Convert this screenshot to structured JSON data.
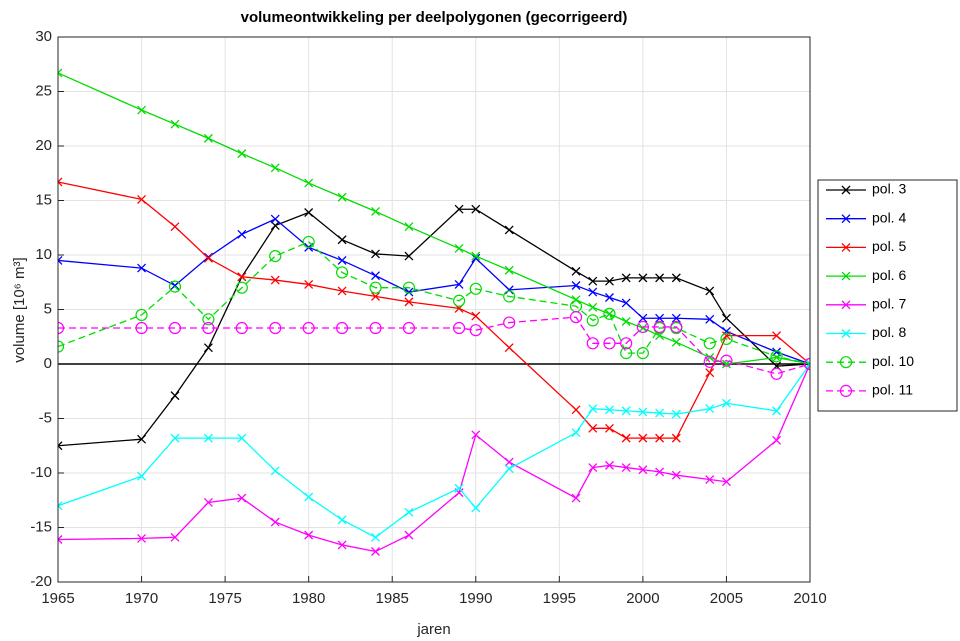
{
  "chart_data": {
    "type": "line",
    "title": "volumeontwikkeling per deelpolygonen (gecorrigeerd)",
    "xlabel": "jaren",
    "ylabel": "volume [10⁶ m³]",
    "x": [
      1965,
      1970,
      1972,
      1974,
      1976,
      1978,
      1980,
      1982,
      1984,
      1986,
      1989,
      1990,
      1992,
      1996,
      1997,
      1998,
      1999,
      2000,
      2001,
      2002,
      2004,
      2005,
      2008,
      2010
    ],
    "series": [
      {
        "name": "pol. 3",
        "color": "#000000",
        "linestyle": "solid",
        "marker": "x",
        "values": [
          -7.5,
          -6.9,
          -2.9,
          1.5,
          8.0,
          12.7,
          13.9,
          11.4,
          10.1,
          9.9,
          14.2,
          14.2,
          12.3,
          8.5,
          7.6,
          7.6,
          7.9,
          7.9,
          7.9,
          7.9,
          6.7,
          4.2,
          -0.2,
          0
        ]
      },
      {
        "name": "pol. 4",
        "color": "#0000ff",
        "linestyle": "solid",
        "marker": "x",
        "values": [
          9.5,
          8.8,
          7.2,
          9.8,
          11.9,
          13.3,
          10.7,
          9.5,
          8.1,
          6.6,
          7.3,
          9.7,
          6.8,
          7.2,
          6.6,
          6.1,
          5.6,
          4.2,
          4.2,
          4.2,
          4.1,
          3.0,
          1.1,
          0
        ]
      },
      {
        "name": "pol. 5",
        "color": "#ff0000",
        "linestyle": "solid",
        "marker": "x",
        "values": [
          16.7,
          15.1,
          12.6,
          9.7,
          8.0,
          7.7,
          7.3,
          6.7,
          6.2,
          5.7,
          5.1,
          4.4,
          1.5,
          -4.2,
          -5.9,
          -5.9,
          -6.8,
          -6.8,
          -6.8,
          -6.8,
          -0.8,
          2.6,
          2.6,
          0
        ]
      },
      {
        "name": "pol. 6",
        "color": "#00dd00",
        "linestyle": "solid",
        "marker": "x",
        "values": [
          26.7,
          23.3,
          22.0,
          20.7,
          19.3,
          18.0,
          16.6,
          15.3,
          14.0,
          12.6,
          10.6,
          9.9,
          8.6,
          5.9,
          5.2,
          4.6,
          3.9,
          3.3,
          2.6,
          2.0,
          0.6,
          0.0,
          0.6,
          0
        ]
      },
      {
        "name": "pol. 7",
        "color": "#ff00ff",
        "linestyle": "solid",
        "marker": "x",
        "values": [
          -16.1,
          -16.0,
          -15.9,
          -12.7,
          -12.3,
          -14.5,
          -15.7,
          -16.6,
          -17.2,
          -15.7,
          -11.8,
          -6.5,
          -9.0,
          -12.3,
          -9.5,
          -9.3,
          -9.5,
          -9.7,
          -9.9,
          -10.2,
          -10.6,
          -10.8,
          -7.0,
          0
        ]
      },
      {
        "name": "pol. 8",
        "color": "#00ffff",
        "linestyle": "solid",
        "marker": "x",
        "values": [
          -13.0,
          -10.3,
          -6.8,
          -6.8,
          -6.8,
          -9.8,
          -12.2,
          -14.3,
          -15.9,
          -13.6,
          -11.4,
          -13.2,
          -9.6,
          -6.3,
          -4.1,
          -4.2,
          -4.3,
          -4.4,
          -4.5,
          -4.6,
          -4.1,
          -3.6,
          -4.3,
          0
        ]
      },
      {
        "name": "pol. 10",
        "color": "#00dd00",
        "linestyle": "dashed",
        "marker": "o",
        "values": [
          1.6,
          4.5,
          7.1,
          4.1,
          7.0,
          9.9,
          11.2,
          8.4,
          7.0,
          7.0,
          5.8,
          6.9,
          6.2,
          5.3,
          4.0,
          4.6,
          1.0,
          1.0,
          3.3,
          3.3,
          1.9,
          2.3,
          0.7,
          0
        ]
      },
      {
        "name": "pol. 11",
        "color": "#ff00ff",
        "linestyle": "dashed",
        "marker": "o",
        "values": [
          3.3,
          3.3,
          3.3,
          3.3,
          3.3,
          3.3,
          3.3,
          3.3,
          3.3,
          3.3,
          3.3,
          3.1,
          3.8,
          4.3,
          1.9,
          1.9,
          1.9,
          3.4,
          3.4,
          3.4,
          0.2,
          0.3,
          -0.9,
          0
        ]
      }
    ],
    "reference_line": 0,
    "xlim": [
      1965,
      2010
    ],
    "xticks": [
      1965,
      1970,
      1975,
      1980,
      1985,
      1990,
      1995,
      2000,
      2005,
      2010
    ],
    "ylim": [
      -20,
      30
    ],
    "yticks": [
      -20,
      -15,
      -10,
      -5,
      0,
      5,
      10,
      15,
      20,
      25,
      30
    ],
    "grid": true,
    "legend": "outside-right"
  }
}
